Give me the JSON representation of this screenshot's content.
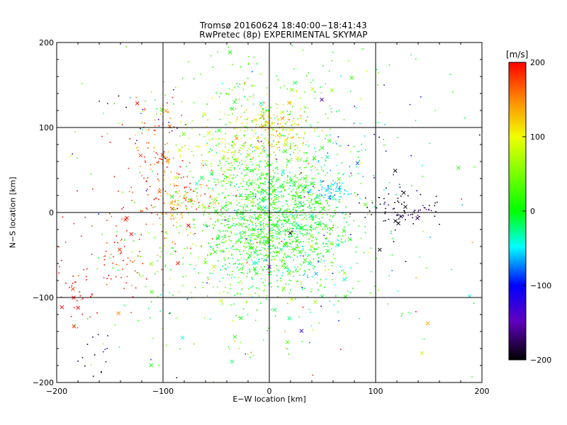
{
  "chart_data": {
    "type": "scatter",
    "title": "Tromsø 20160624 18:40:00−18:41:43",
    "subtitle": "RwPretec (8p) EXPERIMENTAL SKYMAP",
    "xlabel": "E−W location [km]",
    "ylabel": "N−S location [km]",
    "xlim": [
      -200,
      200
    ],
    "ylim": [
      -200,
      200
    ],
    "x_ticks": [
      "−200",
      "−100",
      "0",
      "100",
      "200"
    ],
    "y_ticks": [
      "−200",
      "−100",
      "0",
      "100",
      "200"
    ],
    "grid": true,
    "colorbar": {
      "label": "[m/s]",
      "range": [
        -200,
        200
      ],
      "ticks": [
        "200",
        "100",
        "0",
        "−100",
        "−200"
      ],
      "colormap": "rainbow"
    },
    "marker_legend_note": "",
    "clusters": [
      {
        "x": 0,
        "y": -5,
        "sx": 35,
        "sy": 45,
        "n": 1500,
        "v": 10,
        "sv": 30
      },
      {
        "x": 5,
        "y": 100,
        "sx": 18,
        "sy": 15,
        "n": 170,
        "v": 115,
        "sv": 30
      },
      {
        "x": -100,
        "y": 70,
        "sx": 15,
        "sy": 25,
        "n": 100,
        "v": 170,
        "sv": 30
      },
      {
        "x": -85,
        "y": 10,
        "sx": 10,
        "sy": 12,
        "n": 60,
        "v": 140,
        "sv": 35
      },
      {
        "x": -90,
        "y": 5,
        "sx": 35,
        "sy": 25,
        "n": 70,
        "v": 180,
        "sv": 25
      },
      {
        "x": -150,
        "y": -50,
        "sx": 25,
        "sy": 40,
        "n": 80,
        "v": 190,
        "sv": 15
      },
      {
        "x": -185,
        "y": -95,
        "sx": 10,
        "sy": 20,
        "n": 25,
        "v": 200,
        "sv": 5
      },
      {
        "x": 57,
        "y": 25,
        "sx": 9,
        "sy": 5,
        "n": 70,
        "v": -60,
        "sv": 15
      },
      {
        "x": 70,
        "y": 55,
        "sx": 25,
        "sy": 35,
        "n": 60,
        "v": -35,
        "sv": 35
      },
      {
        "x": 125,
        "y": 5,
        "sx": 18,
        "sy": 10,
        "n": 80,
        "v": -190,
        "sv": 15
      },
      {
        "x": 30,
        "y": -40,
        "sx": 25,
        "sy": 25,
        "n": 150,
        "v": -20,
        "sv": 25
      },
      {
        "x": 0,
        "y": 140,
        "sx": 55,
        "sy": 30,
        "n": 160,
        "v": 20,
        "sv": 25
      },
      {
        "x": -40,
        "y": 75,
        "sx": 25,
        "sy": 25,
        "n": 140,
        "v": 80,
        "sv": 30
      },
      {
        "x": -60,
        "y": -60,
        "sx": 45,
        "sy": 55,
        "n": 180,
        "v": 40,
        "sv": 30
      },
      {
        "x": 60,
        "y": -110,
        "sx": 60,
        "sy": 50,
        "n": 40,
        "v": 0,
        "sv": 60
      },
      {
        "x": -165,
        "y": -170,
        "sx": 12,
        "sy": 15,
        "n": 16,
        "v": -180,
        "sv": 25
      },
      {
        "x": 140,
        "y": 50,
        "sx": 30,
        "sy": 60,
        "n": 25,
        "v": -100,
        "sv": 90
      },
      {
        "x": -120,
        "y": 110,
        "sx": 20,
        "sy": 15,
        "n": 30,
        "v": 40,
        "sv": 180
      },
      {
        "x": 0,
        "y": 0,
        "sx": 120,
        "sy": 110,
        "n": 160,
        "v": 10,
        "sv": 120
      }
    ]
  }
}
